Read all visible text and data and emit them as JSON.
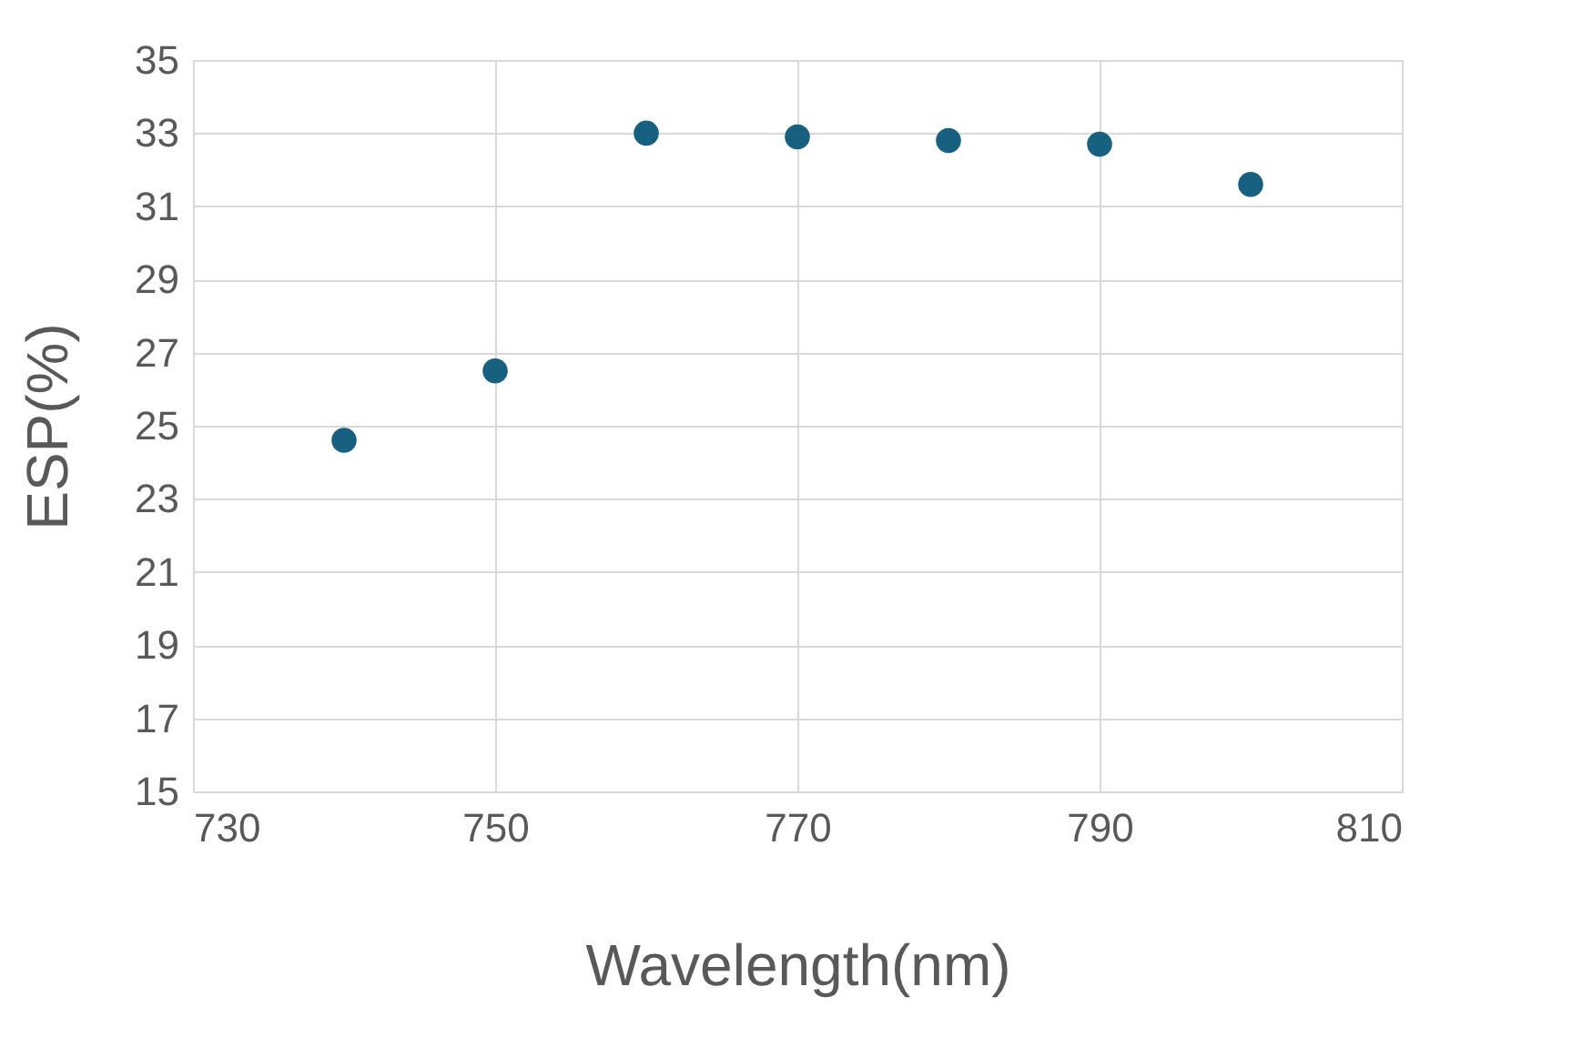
{
  "chart_data": {
    "type": "scatter",
    "xlabel": "Wavelength(nm)",
    "ylabel": "ESP(%)",
    "x": [
      740,
      750,
      760,
      770,
      780,
      790,
      800
    ],
    "series": [
      {
        "color": "#17607f",
        "values": [
          24.6,
          26.5,
          33.0,
          32.9,
          32.8,
          32.7,
          31.6
        ]
      }
    ],
    "xlim": [
      730,
      810
    ],
    "xticks": [
      730,
      750,
      770,
      790,
      810
    ],
    "ylim": [
      15,
      35
    ],
    "yticks": [
      15,
      17,
      19,
      21,
      23,
      25,
      27,
      29,
      31,
      33,
      35
    ],
    "grid": true,
    "marker": "circle"
  }
}
